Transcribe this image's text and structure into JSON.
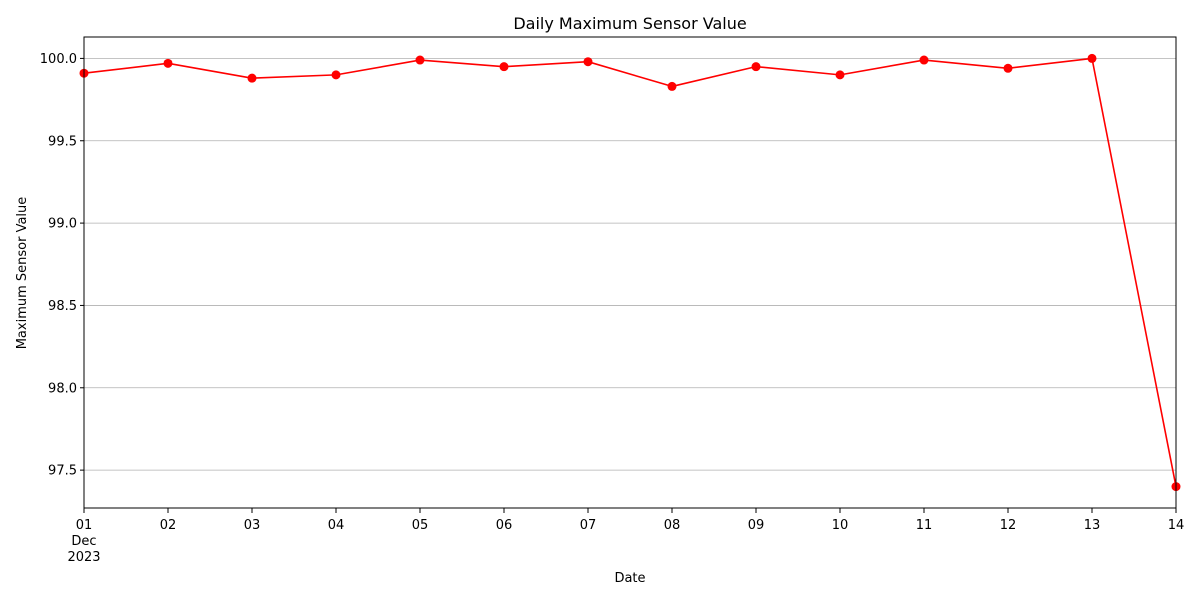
{
  "chart_data": {
    "type": "line",
    "title": "Daily Maximum Sensor Value",
    "xlabel": "Date",
    "ylabel": "Maximum Sensor Value",
    "x": [
      "2023-12-01",
      "2023-12-02",
      "2023-12-03",
      "2023-12-04",
      "2023-12-05",
      "2023-12-06",
      "2023-12-07",
      "2023-12-08",
      "2023-12-09",
      "2023-12-10",
      "2023-12-11",
      "2023-12-12",
      "2023-12-13",
      "2023-12-14"
    ],
    "x_tick_labels": [
      "01",
      "02",
      "03",
      "04",
      "05",
      "06",
      "07",
      "08",
      "09",
      "10",
      "11",
      "12",
      "13",
      "14"
    ],
    "x_secondary_label": [
      "Dec",
      "2023"
    ],
    "series": [
      {
        "values": [
          99.91,
          99.97,
          99.88,
          99.9,
          99.99,
          99.95,
          99.98,
          99.83,
          99.95,
          99.9,
          99.99,
          99.94,
          100.0,
          97.4
        ],
        "color": "#ff0000"
      }
    ],
    "y_ticks": [
      97.5,
      98.0,
      98.5,
      99.0,
      99.5,
      100.0
    ],
    "y_tick_labels": [
      "97.5",
      "98.0",
      "98.5",
      "99.0",
      "99.5",
      "100.0"
    ],
    "ylim": [
      97.27,
      100.13
    ],
    "grid": "horizontal"
  }
}
